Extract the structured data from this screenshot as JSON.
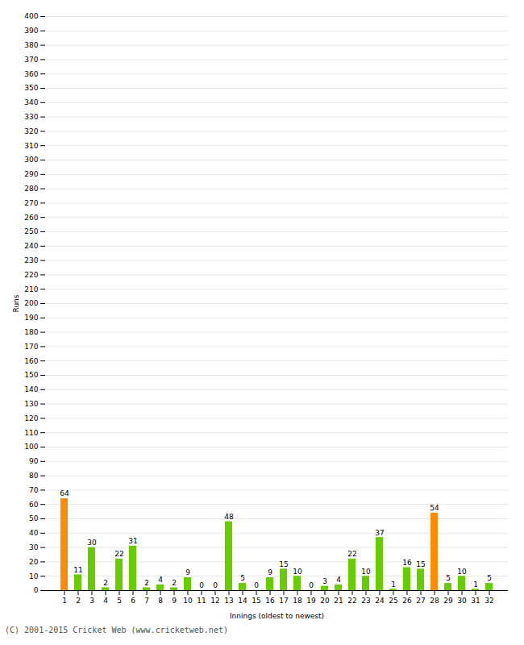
{
  "chart_data": {
    "type": "bar",
    "categories": [
      1,
      2,
      3,
      4,
      5,
      6,
      7,
      8,
      9,
      10,
      11,
      12,
      13,
      14,
      15,
      16,
      17,
      18,
      19,
      20,
      21,
      22,
      23,
      24,
      25,
      26,
      27,
      28,
      29,
      30,
      31,
      32
    ],
    "values": [
      64,
      11,
      30,
      2,
      22,
      31,
      2,
      4,
      2,
      9,
      0,
      0,
      48,
      5,
      0,
      9,
      15,
      10,
      0,
      3,
      4,
      22,
      10,
      37,
      1,
      16,
      15,
      54,
      5,
      10,
      1,
      5
    ],
    "colors": [
      "#ff8c00",
      "#66cc00",
      "#66cc00",
      "#66cc00",
      "#66cc00",
      "#66cc00",
      "#66cc00",
      "#66cc00",
      "#66cc00",
      "#66cc00",
      "#66cc00",
      "#66cc00",
      "#66cc00",
      "#66cc00",
      "#66cc00",
      "#66cc00",
      "#66cc00",
      "#66cc00",
      "#66cc00",
      "#66cc00",
      "#66cc00",
      "#66cc00",
      "#66cc00",
      "#66cc00",
      "#66cc00",
      "#66cc00",
      "#66cc00",
      "#ff8c00",
      "#66cc00",
      "#66cc00",
      "#66cc00",
      "#66cc00"
    ],
    "xlabel": "Innings (oldest to newest)",
    "ylabel": "Runs",
    "ylim": [
      0,
      400
    ],
    "yticks": [
      0,
      10,
      20,
      30,
      40,
      50,
      60,
      70,
      80,
      90,
      100,
      110,
      120,
      130,
      140,
      150,
      160,
      170,
      180,
      190,
      200,
      210,
      220,
      230,
      240,
      250,
      260,
      270,
      280,
      290,
      300,
      310,
      320,
      330,
      340,
      350,
      360,
      370,
      380,
      390,
      400
    ],
    "grid": true,
    "data_labels": true,
    "caption": "(C) 2001-2015 Cricket Web (www.cricketweb.net)"
  }
}
